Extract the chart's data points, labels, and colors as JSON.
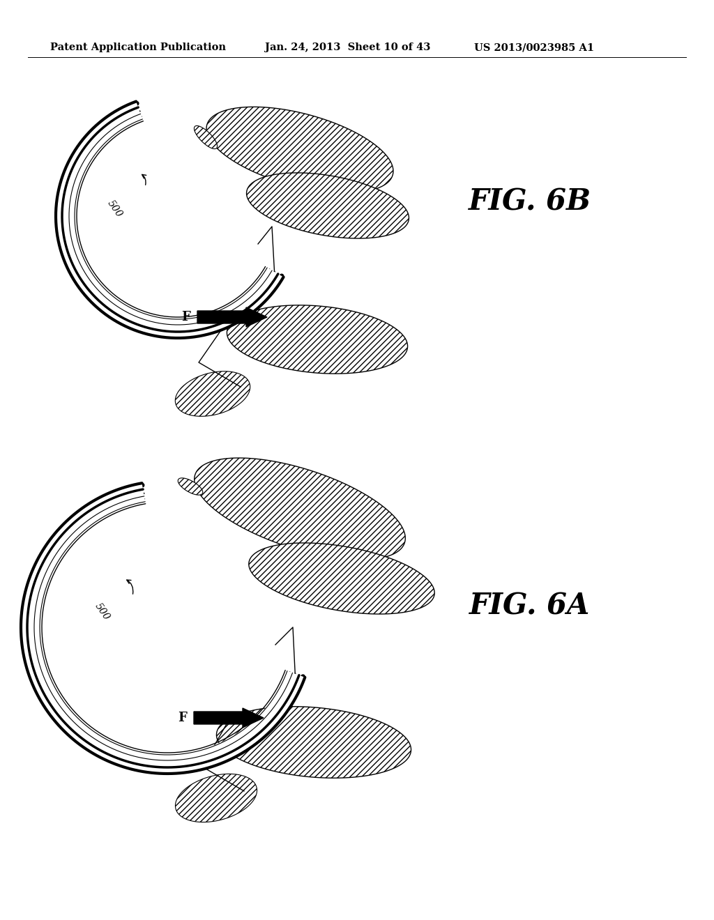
{
  "header_left": "Patent Application Publication",
  "header_mid": "Jan. 24, 2013  Sheet 10 of 43",
  "header_right": "US 2013/0023985 A1",
  "fig_top_label": "FIG. 6B",
  "fig_bot_label": "FIG. 6A",
  "label_500": "500",
  "label_F": "F",
  "bg_color": "#ffffff"
}
